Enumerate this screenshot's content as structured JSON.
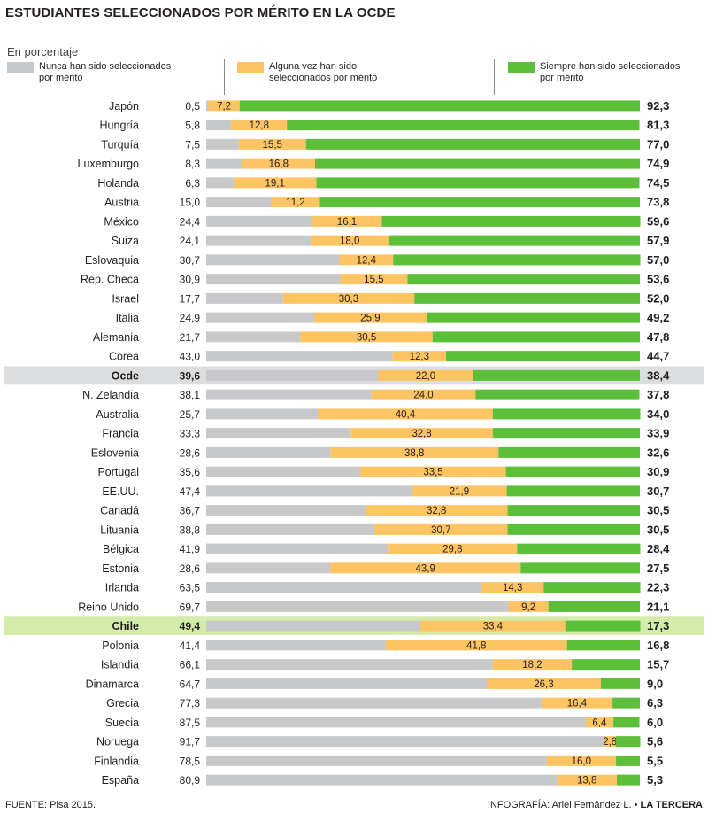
{
  "title": "ESTUDIANTES SELECCIONADOS POR MÉRITO EN LA OCDE",
  "subtitle": "En porcentaje",
  "legend": [
    {
      "key": "nunca",
      "label": "Nunca han sido seleccionados por mérito",
      "color": "#c7c8ca"
    },
    {
      "key": "alguna",
      "label": "Alguna vez han sido seleccionados por mérito",
      "color": "#fcc462"
    },
    {
      "key": "siempre",
      "label": "Siempre han sido seleccionados por mérito",
      "color": "#5cbf3a"
    }
  ],
  "highlight_colors": {
    "Ocde": "#dcdddf",
    "Chile": "#d4ecaa"
  },
  "footer": {
    "source": "FUENTE: Pisa 2015.",
    "credit_prefix": "INFOGRAFÍA: Ariel Fernández L. •",
    "credit_brand": "LA TERCERA"
  },
  "chart_data": {
    "type": "bar",
    "stacked": true,
    "orientation": "horizontal",
    "xlim": [
      0,
      100
    ],
    "categories": [
      "Japón",
      "Hungría",
      "Turquía",
      "Luxemburgo",
      "Holanda",
      "Austria",
      "México",
      "Suiza",
      "Eslovaquia",
      "Rep. Checa",
      "Israel",
      "Italia",
      "Alemania",
      "Corea",
      "Ocde",
      "N. Zelandia",
      "Australia",
      "Francia",
      "Eslovenia",
      "Portugal",
      "EE.UU.",
      "Canadá",
      "Lituania",
      "Bélgica",
      "Estonia",
      "Irlanda",
      "Reino Unido",
      "Chile",
      "Polonia",
      "Islandia",
      "Dinamarca",
      "Grecia",
      "Suecia",
      "Noruega",
      "Finlandia",
      "España"
    ],
    "series": [
      {
        "name": "Nunca han sido seleccionados por mérito",
        "values": [
          0.5,
          5.8,
          7.5,
          8.3,
          6.3,
          15.0,
          24.4,
          24.1,
          30.7,
          30.9,
          17.7,
          24.9,
          21.7,
          43.0,
          39.6,
          38.1,
          25.7,
          33.3,
          28.6,
          35.6,
          47.4,
          36.7,
          38.8,
          41.9,
          28.6,
          63.5,
          69.7,
          49.4,
          41.4,
          66.1,
          64.7,
          77.3,
          87.5,
          91.7,
          78.5,
          80.9
        ]
      },
      {
        "name": "Alguna vez han sido seleccionados por mérito",
        "values": [
          7.2,
          12.8,
          15.5,
          16.8,
          19.1,
          11.2,
          16.1,
          18.0,
          12.4,
          15.5,
          30.3,
          25.9,
          30.5,
          12.3,
          22.0,
          24.0,
          40.4,
          32.8,
          38.8,
          33.5,
          21.9,
          32.8,
          30.7,
          29.8,
          43.9,
          14.3,
          9.2,
          33.4,
          41.8,
          18.2,
          26.3,
          16.4,
          6.4,
          2.8,
          16.0,
          13.8
        ]
      },
      {
        "name": "Siempre han sido seleccionados por mérito",
        "values": [
          92.3,
          81.3,
          77.0,
          74.9,
          74.5,
          73.8,
          59.6,
          57.9,
          57.0,
          53.6,
          52.0,
          49.2,
          47.8,
          44.7,
          38.4,
          37.8,
          34.0,
          33.9,
          32.6,
          30.9,
          30.7,
          30.5,
          30.5,
          28.4,
          27.5,
          22.3,
          21.1,
          17.3,
          16.8,
          15.7,
          9.0,
          6.3,
          6.0,
          5.6,
          5.5,
          5.3
        ]
      }
    ],
    "labels_nunca": [
      "0,5",
      "5,8",
      "7,5",
      "8,3",
      "6,3",
      "15,0",
      "24,4",
      "24,1",
      "30,7",
      "30,9",
      "17,7",
      "24,9",
      "21,7",
      "43,0",
      "39,6",
      "38,1",
      "25,7",
      "33,3",
      "28,6",
      "35,6",
      "47,4",
      "36,7",
      "38,8",
      "41,9",
      "28,6",
      "63,5",
      "69,7",
      "49,4",
      "41,4",
      "66,1",
      "64,7",
      "77,3",
      "87,5",
      "91,7",
      "78,5",
      "80,9"
    ],
    "labels_alguna": [
      "7,2",
      "12,8",
      "15,5",
      "16,8",
      "19,1",
      "11,2",
      "16,1",
      "18,0",
      "12,4",
      "15,5",
      "30,3",
      "25,9",
      "30,5",
      "12,3",
      "22,0",
      "24,0",
      "40,4",
      "32,8",
      "38,8",
      "33,5",
      "21,9",
      "32,8",
      "30,7",
      "29,8",
      "43,9",
      "14,3",
      "9,2",
      "33,4",
      "41,8",
      "18,2",
      "26,3",
      "16,4",
      "6,4",
      "2,8",
      "16,0",
      "13,8"
    ],
    "labels_siempre": [
      "92,3",
      "81,3",
      "77,0",
      "74,9",
      "74,5",
      "73,8",
      "59,6",
      "57,9",
      "57,0",
      "53,6",
      "52,0",
      "49,2",
      "47,8",
      "44,7",
      "38,4",
      "37,8",
      "34,0",
      "33,9",
      "32,6",
      "30,9",
      "30,7",
      "30,5",
      "30,5",
      "28,4",
      "27,5",
      "22,3",
      "21,1",
      "17,3",
      "16,8",
      "15,7",
      "9,0",
      "6,3",
      "6,0",
      "5,6",
      "5,5",
      "5,3"
    ],
    "highlighted": [
      "Ocde",
      "Chile"
    ]
  }
}
